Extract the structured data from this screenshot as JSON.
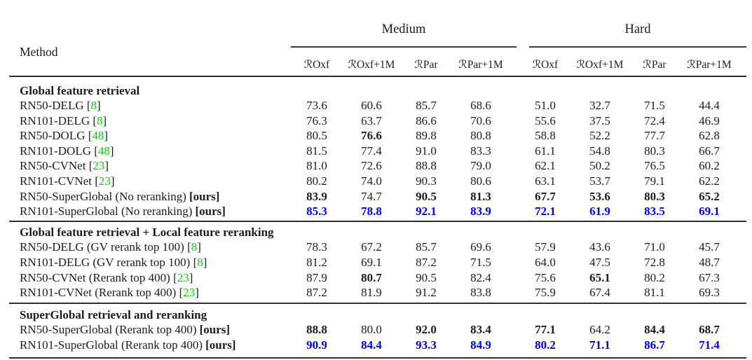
{
  "table": {
    "method_header": "Method",
    "ours_label": "[ours]",
    "colors": {
      "accent_blue": "#0000ee",
      "citation_green": "#00d800",
      "rule": "#2e2e2e"
    },
    "groups": [
      {
        "label": "Medium"
      },
      {
        "label": "Hard"
      }
    ],
    "subheaders": [
      "ℛOxf",
      "ℛOxf+1M",
      "ℛPar",
      "ℛPar+1M",
      "ℛOxf",
      "ℛOxf+1M",
      "ℛPar",
      "ℛPar+1M"
    ],
    "sections": [
      {
        "title": "Global feature retrieval",
        "rows": [
          {
            "method": "RN50-DELG",
            "ref": "8",
            "ours": false,
            "blue": false,
            "values": [
              "73.6",
              "60.6",
              "85.7",
              "68.6",
              "51.0",
              "32.7",
              "71.5",
              "44.4"
            ],
            "bold": [
              0,
              0,
              0,
              0,
              0,
              0,
              0,
              0
            ]
          },
          {
            "method": "RN101-DELG",
            "ref": "8",
            "ours": false,
            "blue": false,
            "values": [
              "76.3",
              "63.7",
              "86.6",
              "70.6",
              "55.6",
              "37.5",
              "72.4",
              "46.9"
            ],
            "bold": [
              0,
              0,
              0,
              0,
              0,
              0,
              0,
              0
            ]
          },
          {
            "method": "RN50-DOLG",
            "ref": "48",
            "ours": false,
            "blue": false,
            "values": [
              "80.5",
              "76.6",
              "89.8",
              "80.8",
              "58.8",
              "52.2",
              "77.7",
              "62.8"
            ],
            "bold": [
              0,
              1,
              0,
              0,
              0,
              0,
              0,
              0
            ]
          },
          {
            "method": "RN101-DOLG",
            "ref": "48",
            "ours": false,
            "blue": false,
            "values": [
              "81.5",
              "77.4",
              "91.0",
              "83.3",
              "61.1",
              "54.8",
              "80.3",
              "66.7"
            ],
            "bold": [
              0,
              0,
              0,
              0,
              0,
              0,
              0,
              0
            ]
          },
          {
            "method": "RN50-CVNet",
            "ref": "23",
            "ours": false,
            "blue": false,
            "values": [
              "81.0",
              "72.6",
              "88.8",
              "79.0",
              "62.1",
              "50.2",
              "76.5",
              "60.2"
            ],
            "bold": [
              0,
              0,
              0,
              0,
              0,
              0,
              0,
              0
            ]
          },
          {
            "method": "RN101-CVNet",
            "ref": "23",
            "ours": false,
            "blue": false,
            "values": [
              "80.2",
              "74.0",
              "90.3",
              "80.6",
              "63.1",
              "53.7",
              "79.1",
              "62.2"
            ],
            "bold": [
              0,
              0,
              0,
              0,
              0,
              0,
              0,
              0
            ]
          },
          {
            "method": "RN50-SuperGlobal (No reranking)",
            "ref": null,
            "ours": true,
            "blue": false,
            "values": [
              "83.9",
              "74.7",
              "90.5",
              "81.3",
              "67.7",
              "53.6",
              "80.3",
              "65.2"
            ],
            "bold": [
              1,
              0,
              1,
              1,
              1,
              1,
              1,
              1
            ]
          },
          {
            "method": "RN101-SuperGlobal (No reranking)",
            "ref": null,
            "ours": true,
            "blue": true,
            "values": [
              "85.3",
              "78.8",
              "92.1",
              "83.9",
              "72.1",
              "61.9",
              "83.5",
              "69.1"
            ],
            "bold": [
              1,
              1,
              1,
              1,
              1,
              1,
              1,
              1
            ]
          }
        ]
      },
      {
        "title": "Global feature retrieval + Local feature reranking",
        "rows": [
          {
            "method": "RN50-DELG (GV rerank top 100)",
            "ref": "8",
            "ours": false,
            "blue": false,
            "values": [
              "78.3",
              "67.2",
              "85.7",
              "69.6",
              "57.9",
              "43.6",
              "71.0",
              "45.7"
            ],
            "bold": [
              0,
              0,
              0,
              0,
              0,
              0,
              0,
              0
            ]
          },
          {
            "method": "RN101-DELG (GV rerank top 100)",
            "ref": "8",
            "ours": false,
            "blue": false,
            "values": [
              "81.2",
              "69.1",
              "87.2",
              "71.5",
              "64.0",
              "47.5",
              "72.8",
              "48.7"
            ],
            "bold": [
              0,
              0,
              0,
              0,
              0,
              0,
              0,
              0
            ]
          },
          {
            "method": "RN50-CVNet (Rerank top 400)",
            "ref": "23",
            "ours": false,
            "blue": false,
            "values": [
              "87.9",
              "80.7",
              "90.5",
              "82.4",
              "75.6",
              "65.1",
              "80.2",
              "67.3"
            ],
            "bold": [
              0,
              1,
              0,
              0,
              0,
              1,
              0,
              0
            ]
          },
          {
            "method": "RN101-CVNet (Rerank top 400)",
            "ref": "23",
            "ours": false,
            "blue": false,
            "values": [
              "87.2",
              "81.9",
              "91.2",
              "83.8",
              "75.9",
              "67.4",
              "81.1",
              "69.3"
            ],
            "bold": [
              0,
              0,
              0,
              0,
              0,
              0,
              0,
              0
            ]
          }
        ]
      },
      {
        "title": "SuperGlobal retrieval and reranking",
        "rows": [
          {
            "method": "RN50-SuperGlobal (Rerank top 400)",
            "ref": null,
            "ours": true,
            "blue": false,
            "values": [
              "88.8",
              "80.0",
              "92.0",
              "83.4",
              "77.1",
              "64.2",
              "84.4",
              "68.7"
            ],
            "bold": [
              1,
              0,
              1,
              1,
              1,
              0,
              1,
              1
            ]
          },
          {
            "method": "RN101-SuperGlobal (Rerank top 400)",
            "ref": null,
            "ours": true,
            "blue": true,
            "values": [
              "90.9",
              "84.4",
              "93.3",
              "84.9",
              "80.2",
              "71.1",
              "86.7",
              "71.4"
            ],
            "bold": [
              1,
              1,
              1,
              1,
              1,
              1,
              1,
              1
            ]
          }
        ]
      }
    ]
  }
}
